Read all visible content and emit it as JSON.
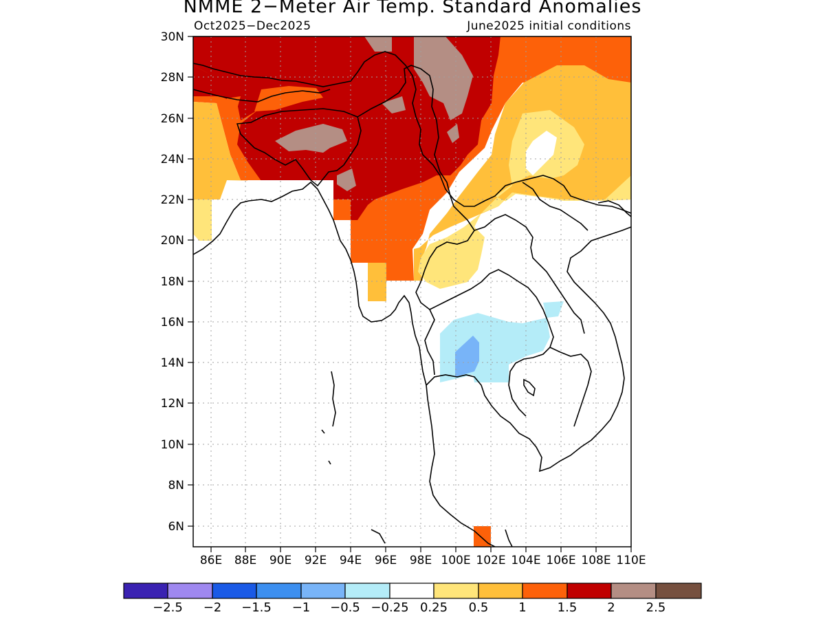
{
  "title": "NMME 2−Meter Air Temp. Standard Anomalies",
  "subtitle_left": "Oct2025−Dec2025",
  "subtitle_right": "June2025 initial conditions",
  "lat_labels": [
    "30N",
    "28N",
    "26N",
    "24N",
    "22N",
    "20N",
    "18N",
    "16N",
    "14N",
    "12N",
    "10N",
    "8N",
    "6N"
  ],
  "lon_labels": [
    "86E",
    "88E",
    "90E",
    "92E",
    "94E",
    "96E",
    "98E",
    "100E",
    "102E",
    "104E",
    "106E",
    "108E",
    "110E"
  ],
  "colorbar": {
    "colors": [
      "#3a22b2",
      "#9f88f0",
      "#1a5ae6",
      "#3c8ff0",
      "#78b4f8",
      "#b4ecf8",
      "#ffffff",
      "#ffe57a",
      "#ffbf3a",
      "#fd6109",
      "#c00000",
      "#b48e84",
      "#76503f"
    ],
    "labels": [
      "−2.5",
      "−2",
      "−1.5",
      "−1",
      "−0.5",
      "−0.25",
      "0.25",
      "0.5",
      "1",
      "1.5",
      "2",
      "2.5"
    ]
  },
  "anomaly_colors": {
    "above_2": "#b48e84",
    "1.5_to_2": "#c00000",
    "1_to_1.5": "#fd6109",
    "0.5_to_1": "#ffbf3a",
    "0.25_to_0.5": "#ffe57a",
    "neutral": "#ffffff",
    "minus_0.25_to_minus_0.5": "#b4ecf8",
    "minus_0.5_to_minus_1": "#78b4f8"
  }
}
